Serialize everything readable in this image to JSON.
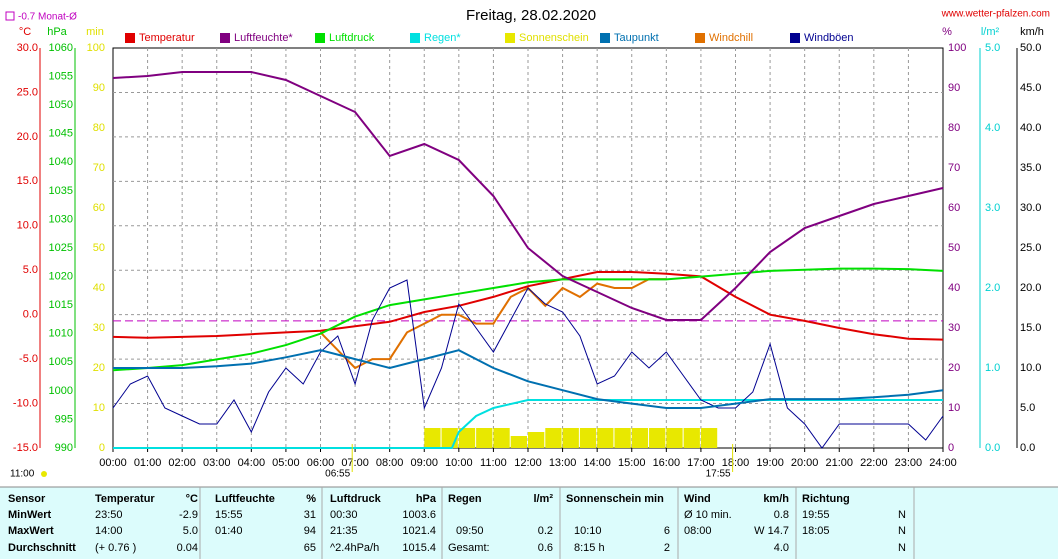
{
  "chart_data": {
    "type": "line",
    "title": "Freitag, 28.02.2020",
    "source": "www.wetter-pfalzen.com",
    "reference": {
      "value": -0.7,
      "label": "-0.7 Monat-Ø",
      "color": "#c000c0"
    },
    "footnote": "11:00",
    "annotations": [
      {
        "x": 6.9167,
        "label": "06:55"
      },
      {
        "x": 17.9167,
        "label": "17:55"
      }
    ],
    "xlim": [
      0,
      24
    ],
    "xticks": [
      {
        "value": 0,
        "label": "00:00"
      },
      {
        "value": 1,
        "label": "01:00"
      },
      {
        "value": 2,
        "label": "02:00"
      },
      {
        "value": 3,
        "label": "03:00"
      },
      {
        "value": 4,
        "label": "04:00"
      },
      {
        "value": 5,
        "label": "05:00"
      },
      {
        "value": 6,
        "label": "06:00"
      },
      {
        "value": 7,
        "label": "07:00"
      },
      {
        "value": 8,
        "label": "08:00"
      },
      {
        "value": 9,
        "label": "09:00"
      },
      {
        "value": 10,
        "label": "10:00"
      },
      {
        "value": 11,
        "label": "11:00"
      },
      {
        "value": 12,
        "label": "12:00"
      },
      {
        "value": 13,
        "label": "13:00"
      },
      {
        "value": 14,
        "label": "14:00"
      },
      {
        "value": 15,
        "label": "15:00"
      },
      {
        "value": 16,
        "label": "16:00"
      },
      {
        "value": 17,
        "label": "17:00"
      },
      {
        "value": 18,
        "label": "18:00"
      },
      {
        "value": 19,
        "label": "19:00"
      },
      {
        "value": 20,
        "label": "20:00"
      },
      {
        "value": 21,
        "label": "21:00"
      },
      {
        "value": 22,
        "label": "22:00"
      },
      {
        "value": 23,
        "label": "23:00"
      },
      {
        "value": 24,
        "label": "24:00"
      }
    ],
    "grid": true,
    "axes": [
      {
        "label": "°C",
        "color": "#e00000",
        "lim": [
          -15,
          30
        ],
        "ticks": [
          {
            "value": -15,
            "label": "-15.0"
          },
          {
            "value": -10,
            "label": "-10.0"
          },
          {
            "value": -5,
            "label": "-5.0"
          },
          {
            "value": 0,
            "label": "0.0"
          },
          {
            "value": 5,
            "label": "5.0"
          },
          {
            "value": 10,
            "label": "10.0"
          },
          {
            "value": 15,
            "label": "15.0"
          },
          {
            "value": 20,
            "label": "20.0"
          },
          {
            "value": 25,
            "label": "25.0"
          },
          {
            "value": 30,
            "label": "30.0"
          }
        ]
      },
      {
        "label": "hPa",
        "color": "#00c000",
        "lim": [
          990,
          1060
        ],
        "ticks": [
          990,
          995,
          1000,
          1005,
          1010,
          1015,
          1020,
          1025,
          1030,
          1035,
          1040,
          1045,
          1050,
          1055,
          1060
        ]
      },
      {
        "label": "min",
        "color": "#e0e000",
        "lim": [
          0,
          100
        ],
        "ticks": [
          0,
          10,
          20,
          30,
          40,
          50,
          60,
          70,
          80,
          90,
          100
        ]
      },
      {
        "label": "%",
        "color": "#800080",
        "lim": [
          0,
          100
        ],
        "ticks": [
          0,
          10,
          20,
          30,
          40,
          50,
          60,
          70,
          80,
          90,
          100
        ]
      },
      {
        "label": "l/m²",
        "color": "#00d0d0",
        "lim": [
          0,
          5
        ],
        "ticks": [
          {
            "value": 0,
            "label": "0.0"
          },
          {
            "value": 1,
            "label": "1.0"
          },
          {
            "value": 2,
            "label": "2.0"
          },
          {
            "value": 3,
            "label": "3.0"
          },
          {
            "value": 4,
            "label": "4.0"
          },
          {
            "value": 5,
            "label": "5.0"
          }
        ]
      },
      {
        "label": "km/h",
        "color": "#000000",
        "lim": [
          0,
          50
        ],
        "ticks": [
          {
            "value": 0,
            "label": "0.0"
          },
          {
            "value": 5,
            "label": "5.0"
          },
          {
            "value": 10,
            "label": "10.0"
          },
          {
            "value": 15,
            "label": "15.0"
          },
          {
            "value": 20,
            "label": "20.0"
          },
          {
            "value": 25,
            "label": "25.0"
          },
          {
            "value": 30,
            "label": "30.0"
          },
          {
            "value": 35,
            "label": "35.0"
          },
          {
            "value": 40,
            "label": "40.0"
          },
          {
            "value": 45,
            "label": "45.0"
          },
          {
            "value": 50,
            "label": "50.0"
          }
        ]
      }
    ],
    "series": [
      {
        "name": "Temperatur",
        "color": "#e00000",
        "axis": 0,
        "x": [
          0,
          1,
          2,
          3,
          4,
          5,
          6,
          7,
          8,
          9,
          10,
          11,
          12,
          13,
          14,
          15,
          16,
          17,
          18,
          19,
          20,
          21,
          22,
          23,
          24
        ],
        "values": [
          -2.5,
          -2.6,
          -2.5,
          -2.4,
          -2.2,
          -2.0,
          -1.8,
          -1.3,
          -0.8,
          0.3,
          1.0,
          2.0,
          3.2,
          4.0,
          4.8,
          4.8,
          4.6,
          4.3,
          2.0,
          0.0,
          -0.7,
          -1.5,
          -2.2,
          -2.7,
          -2.8
        ]
      },
      {
        "name": "Luftfeuchte*",
        "color": "#800080",
        "axis": 3,
        "x": [
          0,
          1,
          2,
          3,
          4,
          5,
          6,
          7,
          8,
          9,
          10,
          11,
          12,
          13,
          14,
          15,
          16,
          17,
          18,
          19,
          20,
          21,
          22,
          23,
          24
        ],
        "values": [
          92.5,
          93,
          94,
          94,
          94,
          92,
          88,
          84,
          73,
          76,
          72,
          63,
          50,
          43,
          39,
          35,
          32,
          32,
          40,
          49,
          55,
          58,
          61,
          63,
          65
        ]
      },
      {
        "name": "Luftdruck",
        "color": "#00e000",
        "axis": 1,
        "x": [
          0,
          1,
          2,
          3,
          4,
          5,
          6,
          7,
          8,
          9,
          10,
          11,
          12,
          13,
          14,
          15,
          16,
          17,
          18,
          19,
          20,
          21,
          22,
          23,
          24
        ],
        "values": [
          1003.6,
          1004,
          1004.5,
          1005.5,
          1006.5,
          1008,
          1010,
          1013,
          1015,
          1016,
          1017,
          1018,
          1019,
          1019.5,
          1019.5,
          1019.5,
          1019.5,
          1020,
          1020.5,
          1021,
          1021.2,
          1021.4,
          1021.4,
          1021.3,
          1021
        ]
      },
      {
        "name": "Regen*",
        "color": "#00e0e0",
        "axis": 4,
        "x": [
          0,
          9.8,
          10,
          10.5,
          11,
          12,
          24
        ],
        "values": [
          0,
          0,
          0.2,
          0.4,
          0.5,
          0.6,
          0.6
        ]
      },
      {
        "name": "Sonnenschein",
        "color": "#e8e800",
        "axis": 2,
        "bars": true,
        "x": [
          9,
          9.5,
          10,
          10.5,
          11,
          11.5,
          12,
          12.5,
          13,
          13.5,
          14,
          14.5,
          15,
          15.5,
          16,
          16.5,
          17
        ],
        "values": [
          5,
          5,
          5,
          5,
          5,
          3,
          4,
          5,
          5,
          5,
          5,
          5,
          5,
          5,
          5,
          5,
          5
        ]
      },
      {
        "name": "Taupunkt",
        "color": "#0070b0",
        "axis": 0,
        "x": [
          0,
          1,
          2,
          3,
          4,
          5,
          6,
          7,
          8,
          9,
          10,
          11,
          12,
          13,
          14,
          15,
          16,
          17,
          18,
          19,
          20,
          21,
          22,
          23,
          24
        ],
        "values": [
          -6,
          -6,
          -6,
          -5.8,
          -5.5,
          -4.8,
          -4,
          -5,
          -6,
          -5,
          -4,
          -6,
          -7.5,
          -8.5,
          -9.5,
          -10,
          -10.5,
          -10.5,
          -10,
          -9.5,
          -9.5,
          -9.5,
          -9.3,
          -9,
          -8.5
        ]
      },
      {
        "name": "Windchill",
        "color": "#e07000",
        "axis": 0,
        "x": [
          6,
          6.5,
          7,
          7.5,
          8,
          8.5,
          9,
          9.5,
          10,
          10.5,
          11,
          11.5,
          12,
          12.5,
          13,
          13.5,
          14,
          14.5,
          15,
          15.5,
          16
        ],
        "values": [
          -2,
          -4,
          -6,
          -5,
          -5,
          -2,
          -1,
          0,
          0,
          -1,
          -1,
          2,
          3,
          1,
          3,
          2,
          3.5,
          3,
          3,
          4,
          4
        ]
      },
      {
        "name": "Windböen",
        "color": "#000090",
        "axis": 5,
        "thin": true,
        "x": [
          0,
          0.5,
          1,
          1.5,
          2,
          2.5,
          3,
          3.5,
          4,
          4.5,
          5,
          5.5,
          6,
          6.5,
          7,
          7.5,
          8,
          8.5,
          9,
          9.5,
          10,
          10.5,
          11,
          11.5,
          12,
          12.5,
          13,
          13.5,
          14,
          14.5,
          15,
          15.5,
          16,
          16.5,
          17,
          17.5,
          18,
          18.5,
          19,
          19.5,
          20,
          20.5,
          21,
          21.5,
          22,
          22.5,
          23,
          23.5,
          24
        ],
        "values": [
          5,
          8,
          9,
          5,
          4,
          3,
          3,
          6,
          2,
          7,
          10,
          8,
          12,
          14,
          8,
          16,
          20,
          21,
          5,
          10,
          18,
          15,
          12,
          16,
          20,
          18,
          17,
          14,
          8,
          9,
          12,
          10,
          12,
          9,
          6,
          5,
          5,
          7,
          13,
          5,
          3,
          0,
          3,
          3,
          3,
          3,
          3,
          1,
          4
        ]
      }
    ]
  },
  "table": {
    "header": [
      "Sensor",
      "Temperatur",
      "°C",
      "Luftfeuchte",
      "%",
      "Luftdruck",
      "hPa",
      "Regen",
      "l/m²",
      "Sonnenschein min",
      null,
      "Wind",
      "km/h",
      "Richtung",
      null
    ],
    "rows": [
      [
        "MinWert",
        "23:50",
        "-2.9",
        "15:55",
        "31",
        "00:30",
        "1003.6",
        null,
        null,
        null,
        null,
        "Ø 10 min.",
        "0.8",
        "19:55",
        "N"
      ],
      [
        "MaxWert",
        "14:00",
        "5.0",
        "01:40",
        "94",
        "21:35",
        "1021.4",
        "09:50",
        "0.2",
        "10:10",
        "6",
        "08:00",
        "W 14.7",
        "18:05",
        "N"
      ],
      [
        "Durchschnitt",
        "(+ 0.76 )",
        "0.04",
        null,
        "65",
        "^2.4hPa/h",
        "1015.4",
        "Gesamt:",
        "0.6",
        "8:15 h",
        "2",
        null,
        "4.0",
        null,
        "N"
      ]
    ]
  }
}
